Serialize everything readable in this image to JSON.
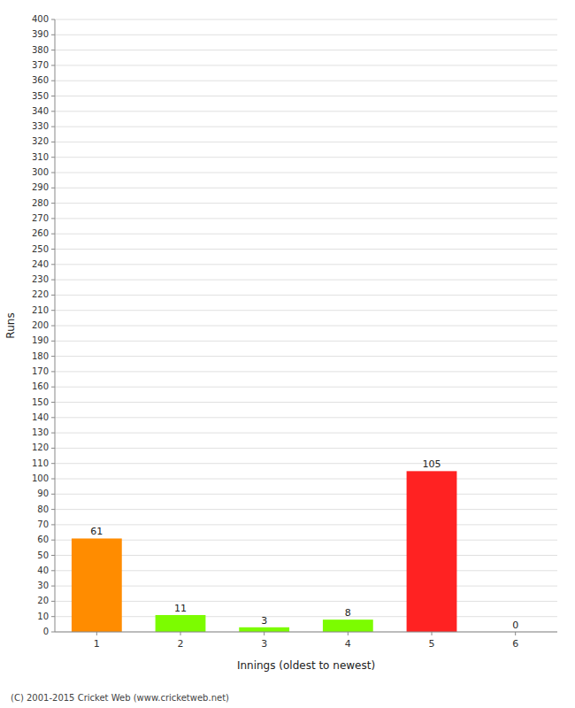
{
  "chart_data": {
    "type": "bar",
    "xlabel": "Innings (oldest to newest)",
    "ylabel": "Runs",
    "categories": [
      "1",
      "2",
      "3",
      "4",
      "5",
      "6"
    ],
    "values": [
      61,
      11,
      3,
      8,
      105,
      0
    ],
    "colors": [
      "#ff8c00",
      "#7cfc00",
      "#7cfc00",
      "#7cfc00",
      "#ff2222",
      "#7cfc00"
    ],
    "ylim": [
      0,
      400
    ],
    "yticks": [
      0,
      10,
      20,
      30,
      40,
      50,
      60,
      70,
      80,
      90,
      100,
      110,
      120,
      130,
      140,
      150,
      160,
      170,
      180,
      190,
      200,
      210,
      220,
      230,
      240,
      250,
      260,
      270,
      280,
      290,
      300,
      310,
      320,
      330,
      340,
      350,
      360,
      370,
      380,
      390,
      400
    ],
    "grid": true,
    "data_labels": true,
    "annotations": [
      "(C) 2001-2015 Cricket Web (www.cricketweb.net)"
    ]
  }
}
